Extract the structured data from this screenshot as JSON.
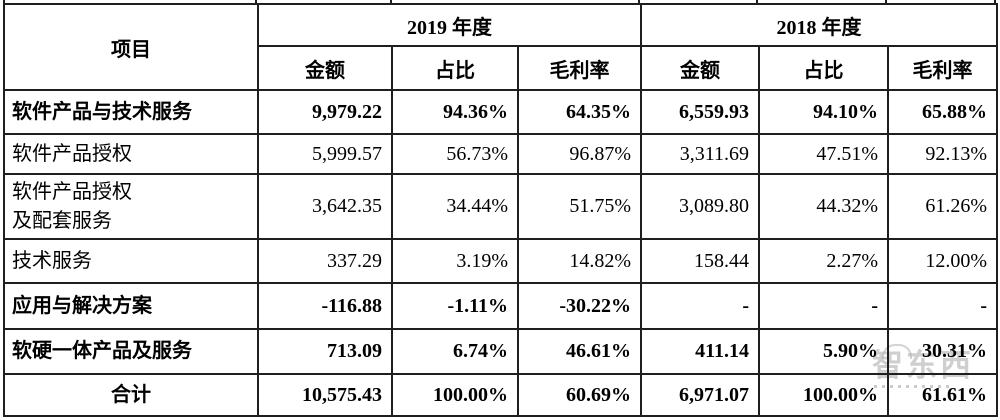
{
  "watermark": {
    "text": "智东西"
  },
  "table": {
    "col_headers": {
      "item": "项目",
      "year_2019": "2019 年度",
      "year_2018": "2018 年度",
      "sub": [
        "金额",
        "占比",
        "毛利率"
      ]
    },
    "rows": [
      {
        "label": "软件产品与技术服务",
        "bold": true,
        "center": false,
        "values": [
          "9,979.22",
          "94.36%",
          "64.35%",
          "6,559.93",
          "94.10%",
          "65.88%"
        ]
      },
      {
        "label": "软件产品授权",
        "bold": false,
        "center": false,
        "values": [
          "5,999.57",
          "56.73%",
          "96.87%",
          "3,311.69",
          "47.51%",
          "92.13%"
        ]
      },
      {
        "label": "软件产品授权\n及配套服务",
        "bold": false,
        "center": false,
        "values": [
          "3,642.35",
          "34.44%",
          "51.75%",
          "3,089.80",
          "44.32%",
          "61.26%"
        ]
      },
      {
        "label": "技术服务",
        "bold": false,
        "center": false,
        "values": [
          "337.29",
          "3.19%",
          "14.82%",
          "158.44",
          "2.27%",
          "12.00%"
        ]
      },
      {
        "label": "应用与解决方案",
        "bold": true,
        "center": false,
        "values": [
          "-116.88",
          "-1.11%",
          "-30.22%",
          "-",
          "-",
          "-"
        ]
      },
      {
        "label": "软硬一体产品及服务",
        "bold": true,
        "center": false,
        "values": [
          "713.09",
          "6.74%",
          "46.61%",
          "411.14",
          "5.90%",
          "30.31%"
        ]
      },
      {
        "label": "合计",
        "bold": true,
        "center": true,
        "values": [
          "10,575.43",
          "100.00%",
          "60.69%",
          "6,971.07",
          "100.00%",
          "61.61%"
        ]
      }
    ]
  }
}
